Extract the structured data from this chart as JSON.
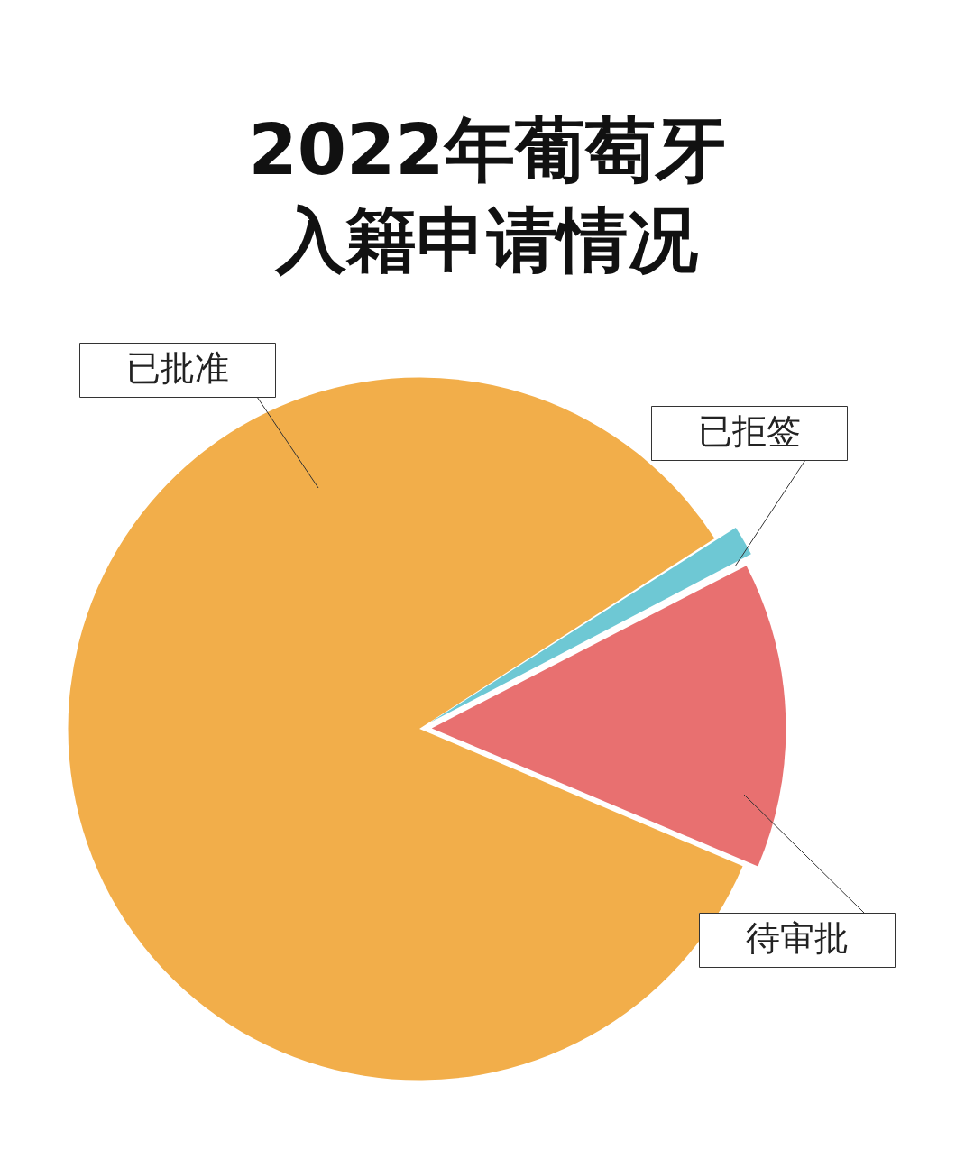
{
  "chart_data": {
    "type": "pie",
    "title": "2022年葡萄牙入籍申请情况",
    "categories": [
      "已批准",
      "已拒签",
      "待审批"
    ],
    "values": [
      84.5,
      1.5,
      14
    ],
    "colors": [
      "#f2ae4a",
      "#6ec8d4",
      "#e87070"
    ],
    "legend": false
  }
}
